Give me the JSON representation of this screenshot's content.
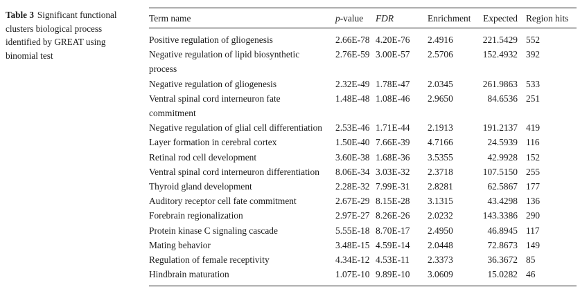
{
  "caption": {
    "label": "Table 3",
    "text": "Significant functional clusters biological process identified by GREAT using binomial test"
  },
  "table": {
    "columns": [
      {
        "label": "Term name",
        "style": "normal"
      },
      {
        "label": "p-value",
        "style": "italic-first"
      },
      {
        "label": "FDR",
        "style": "italic"
      },
      {
        "label": "Enrichment",
        "style": "normal"
      },
      {
        "label": "Expected",
        "style": "normal"
      },
      {
        "label": "Region hits",
        "style": "normal"
      }
    ],
    "rows": [
      {
        "term": "Positive regulation of gliogenesis",
        "p_value": "2.66E-78",
        "fdr": "4.20E-76",
        "enrichment": "2.4916",
        "expected": "221.5429",
        "region_hits": "552"
      },
      {
        "term": "Negative regulation of lipid biosynthetic\nprocess",
        "p_value": "2.76E-59",
        "fdr": "3.00E-57",
        "enrichment": "2.5706",
        "expected": "152.4932",
        "region_hits": "392"
      },
      {
        "term": "Negative regulation of gliogenesis",
        "p_value": "2.32E-49",
        "fdr": "1.78E-47",
        "enrichment": "2.0345",
        "expected": "261.9863",
        "region_hits": "533"
      },
      {
        "term": "Ventral spinal cord interneuron fate\ncommitment",
        "p_value": "1.48E-48",
        "fdr": "1.08E-46",
        "enrichment": "2.9650",
        "expected": "84.6536",
        "region_hits": "251"
      },
      {
        "term": "Negative regulation of glial cell differentiation",
        "p_value": "2.53E-46",
        "fdr": "1.71E-44",
        "enrichment": "2.1913",
        "expected": "191.2137",
        "region_hits": "419"
      },
      {
        "term": "Layer formation in cerebral cortex",
        "p_value": "1.50E-40",
        "fdr": "7.66E-39",
        "enrichment": "4.7166",
        "expected": "24.5939",
        "region_hits": "116"
      },
      {
        "term": "Retinal rod cell development",
        "p_value": "3.60E-38",
        "fdr": "1.68E-36",
        "enrichment": "3.5355",
        "expected": "42.9928",
        "region_hits": "152"
      },
      {
        "term": "Ventral spinal cord interneuron differentiation",
        "p_value": "8.06E-34",
        "fdr": "3.03E-32",
        "enrichment": "2.3718",
        "expected": "107.5150",
        "region_hits": "255"
      },
      {
        "term": "Thyroid gland development",
        "p_value": "2.28E-32",
        "fdr": "7.99E-31",
        "enrichment": "2.8281",
        "expected": "62.5867",
        "region_hits": "177"
      },
      {
        "term": "Auditory receptor cell fate commitment",
        "p_value": "2.67E-29",
        "fdr": "8.15E-28",
        "enrichment": "3.1315",
        "expected": "43.4298",
        "region_hits": "136"
      },
      {
        "term": "Forebrain regionalization",
        "p_value": "2.97E-27",
        "fdr": "8.26E-26",
        "enrichment": "2.0232",
        "expected": "143.3386",
        "region_hits": "290"
      },
      {
        "term": "Protein kinase C signaling cascade",
        "p_value": "5.55E-18",
        "fdr": "8.70E-17",
        "enrichment": "2.4950",
        "expected": "46.8945",
        "region_hits": "117"
      },
      {
        "term": "Mating behavior",
        "p_value": "3.48E-15",
        "fdr": "4.59E-14",
        "enrichment": "2.0448",
        "expected": "72.8673",
        "region_hits": "149"
      },
      {
        "term": "Regulation of female receptivity",
        "p_value": "4.34E-12",
        "fdr": "4.53E-11",
        "enrichment": "2.3373",
        "expected": "36.3672",
        "region_hits": "85"
      },
      {
        "term": "Hindbrain maturation",
        "p_value": "1.07E-10",
        "fdr": "9.89E-10",
        "enrichment": "3.0609",
        "expected": "15.0282",
        "region_hits": "46"
      }
    ]
  }
}
